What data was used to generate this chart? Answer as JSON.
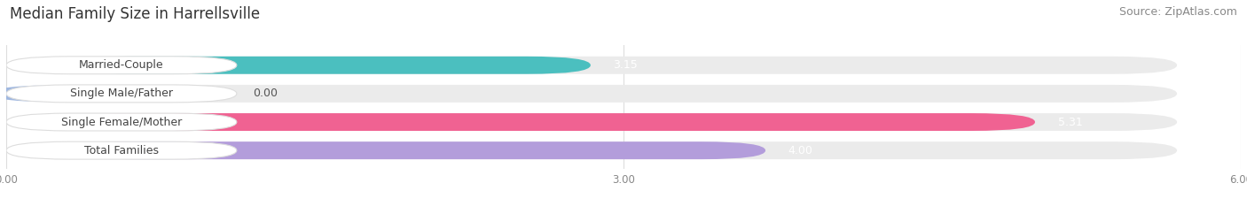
{
  "title": "Median Family Size in Harrellsville",
  "source": "Source: ZipAtlas.com",
  "categories": [
    "Married-Couple",
    "Single Male/Father",
    "Single Female/Mother",
    "Total Families"
  ],
  "values": [
    3.15,
    0.0,
    5.31,
    4.0
  ],
  "bar_colors": [
    "#4bbfbf",
    "#a0b8e0",
    "#f06292",
    "#b39ddb"
  ],
  "track_color": "#ebebeb",
  "label_bg": "#ffffff",
  "xlim": [
    0,
    6.0
  ],
  "xticks": [
    0.0,
    3.0,
    6.0
  ],
  "xtick_labels": [
    "0.00",
    "3.00",
    "6.00"
  ],
  "bar_height": 0.62,
  "value_label_color_inside": "#ffffff",
  "value_label_color_outside": "#555555",
  "title_fontsize": 12,
  "source_fontsize": 9,
  "label_fontsize": 9,
  "value_fontsize": 9,
  "background_color": "#ffffff",
  "value_inside_threshold": 1.8
}
